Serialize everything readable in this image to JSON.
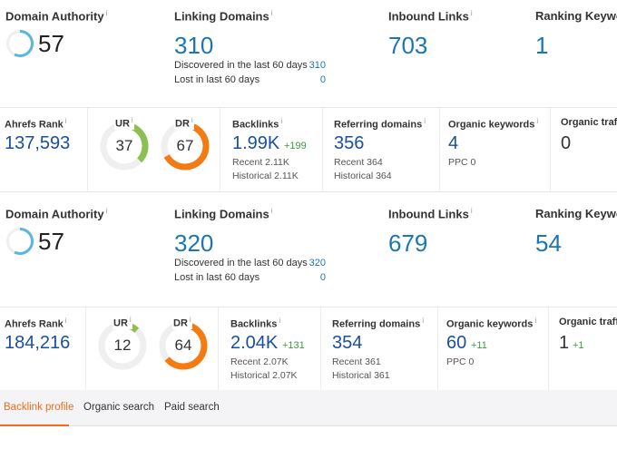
{
  "blocks": [
    {
      "moz": {
        "domain_authority": {
          "label": "Domain Authority",
          "value": "57",
          "fill": 0.57
        },
        "linking_domains": {
          "label": "Linking Domains",
          "value": "310",
          "discovered_label": "Discovered in the last 60 days",
          "discovered": "310",
          "lost_label": "Lost in last 60 days",
          "lost": "0"
        },
        "inbound_links": {
          "label": "Inbound Links",
          "value": "703"
        },
        "ranking_keywords": {
          "label": "Ranking Keywo",
          "value": "1"
        }
      },
      "ahrefs": {
        "rank": {
          "label": "Ahrefs Rank",
          "value": "137,593"
        },
        "ur": {
          "label": "UR",
          "value": "37"
        },
        "dr": {
          "label": "DR",
          "value": "67"
        },
        "backlinks": {
          "label": "Backlinks",
          "value": "1.99K",
          "delta": "+199",
          "recent": "Recent 2.11K",
          "historical": "Historical 2.11K"
        },
        "referring_domains": {
          "label": "Referring domains",
          "value": "356",
          "recent": "Recent 364",
          "historical": "Historical 364"
        },
        "organic_keywords": {
          "label": "Organic keywords",
          "value": "4",
          "delta": "",
          "ppc": "PPC 0"
        },
        "organic_traffic": {
          "label": "Organic traffi",
          "value": "0",
          "delta": ""
        }
      }
    },
    {
      "moz": {
        "domain_authority": {
          "label": "Domain Authority",
          "value": "57",
          "fill": 0.57
        },
        "linking_domains": {
          "label": "Linking Domains",
          "value": "320",
          "discovered_label": "Discovered in the last 60 days",
          "discovered": "320",
          "lost_label": "Lost in last 60 days",
          "lost": "0"
        },
        "inbound_links": {
          "label": "Inbound Links",
          "value": "679"
        },
        "ranking_keywords": {
          "label": "Ranking Keywo",
          "value": "54"
        }
      },
      "ahrefs": {
        "rank": {
          "label": "Ahrefs Rank",
          "value": "184,216"
        },
        "ur": {
          "label": "UR",
          "value": "12"
        },
        "dr": {
          "label": "DR",
          "value": "64"
        },
        "backlinks": {
          "label": "Backlinks",
          "value": "2.04K",
          "delta": "+131",
          "recent": "Recent 2.07K",
          "historical": "Historical 2.07K"
        },
        "referring_domains": {
          "label": "Referring domains",
          "value": "354",
          "recent": "Recent 361",
          "historical": "Historical 361"
        },
        "organic_keywords": {
          "label": "Organic keywords",
          "value": "60",
          "delta": "+11",
          "ppc": "PPC 0"
        },
        "organic_traffic": {
          "label": "Organic traffi",
          "value": "1",
          "delta": "+1"
        }
      }
    }
  ],
  "tabs": [
    {
      "label": "Backlink profile",
      "active": true
    },
    {
      "label": "Organic search"
    },
    {
      "label": "Paid search"
    }
  ],
  "colors": {
    "moz_blue": "#1b76b3",
    "ahrefs_blue": "#1a4f9c",
    "ur_green": "#8cc152",
    "dr_orange": "#f47a12",
    "da_ring": "#5bb4e5",
    "positive": "#3a9a3a",
    "tab_active": "#f26c1a"
  }
}
